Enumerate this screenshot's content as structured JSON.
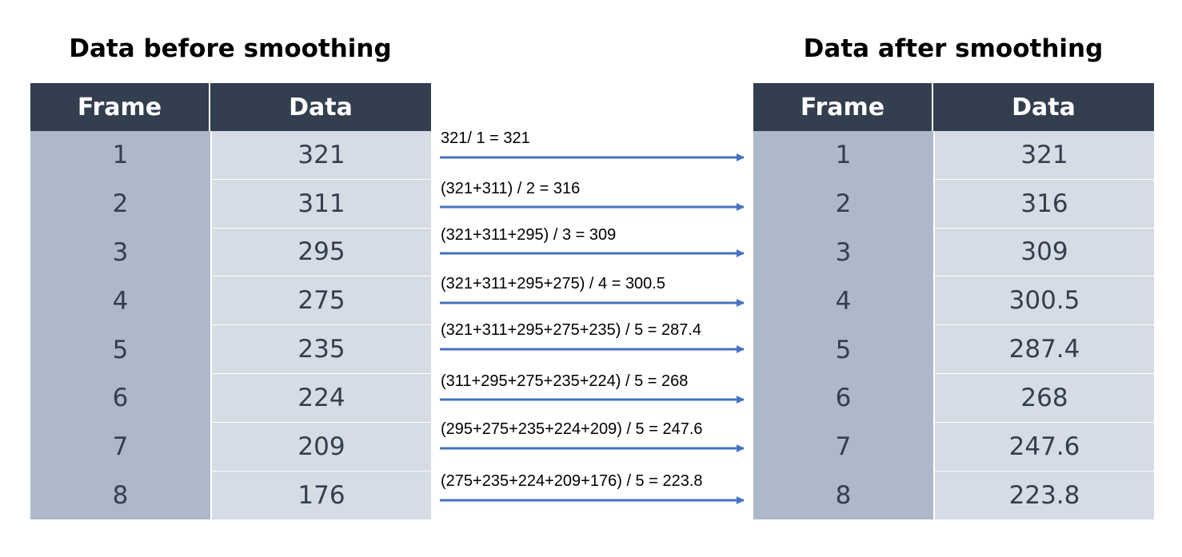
{
  "titles": {
    "before": "Data before smoothing",
    "after": "Data after smoothing"
  },
  "headers": {
    "frame": "Frame",
    "data": "Data"
  },
  "colors": {
    "header_bg": "#333f4f",
    "frame_col": "#adb9ca",
    "data_col": "#d6dce5",
    "arrow": "#4472c4"
  },
  "before": [
    {
      "frame": "1",
      "data": "321"
    },
    {
      "frame": "2",
      "data": "311"
    },
    {
      "frame": "3",
      "data": "295"
    },
    {
      "frame": "4",
      "data": "275"
    },
    {
      "frame": "5",
      "data": "235"
    },
    {
      "frame": "6",
      "data": "224"
    },
    {
      "frame": "7",
      "data": "209"
    },
    {
      "frame": "8",
      "data": "176"
    }
  ],
  "after": [
    {
      "frame": "1",
      "data": "321"
    },
    {
      "frame": "2",
      "data": "316"
    },
    {
      "frame": "3",
      "data": "309"
    },
    {
      "frame": "4",
      "data": "300.5"
    },
    {
      "frame": "5",
      "data": "287.4"
    },
    {
      "frame": "6",
      "data": "268"
    },
    {
      "frame": "7",
      "data": "247.6"
    },
    {
      "frame": "8",
      "data": "223.8"
    }
  ],
  "calculations": [
    "321/ 1 = 321",
    "(321+311) / 2 = 316",
    "(321+311+295) / 3 = 309",
    "(321+311+295+275) / 4 = 300.5",
    "(321+311+295+275+235) / 5 = 287.4",
    "(311+295+275+235+224) / 5 = 268",
    "(295+275+235+224+209) / 5 = 247.6",
    "(275+235+224+209+176) / 5 = 223.8"
  ]
}
